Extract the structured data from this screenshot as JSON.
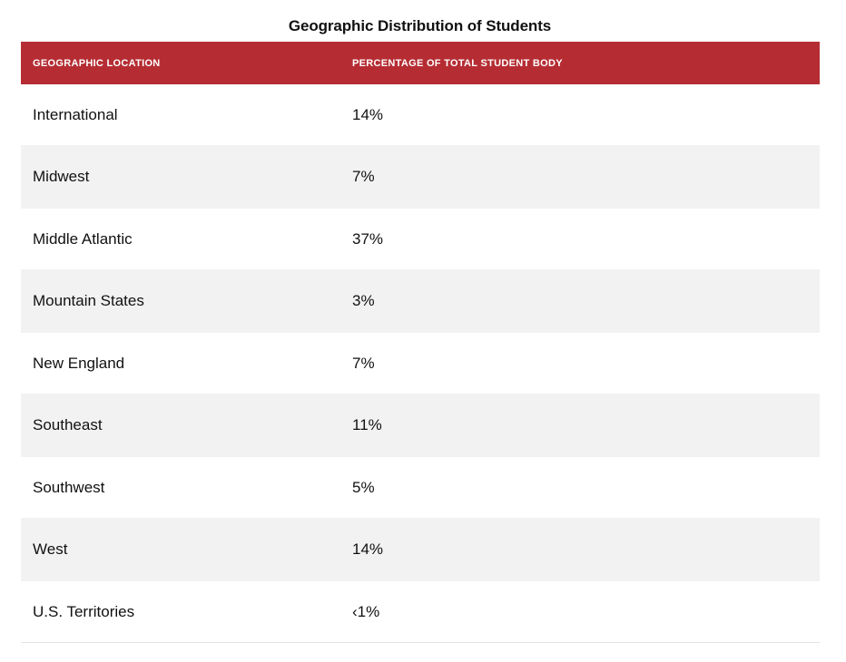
{
  "table": {
    "caption": "Geographic Distribution of Students",
    "headers": [
      "GEOGRAPHIC LOCATION",
      "PERCENTAGE OF TOTAL STUDENT BODY"
    ],
    "rows": [
      {
        "location": "International",
        "percentage": "14%"
      },
      {
        "location": "Midwest",
        "percentage": "7%"
      },
      {
        "location": "Middle Atlantic",
        "percentage": "37%"
      },
      {
        "location": "Mountain States",
        "percentage": "3%"
      },
      {
        "location": "New England",
        "percentage": "7%"
      },
      {
        "location": "Southeast",
        "percentage": "11%"
      },
      {
        "location": "Southwest",
        "percentage": "5%"
      },
      {
        "location": "West",
        "percentage": "14%"
      },
      {
        "location": "U.S. Territories",
        "percentage": "‹1%"
      }
    ],
    "header_color": "#b52d33",
    "stripe_color": "#f2f2f2"
  }
}
